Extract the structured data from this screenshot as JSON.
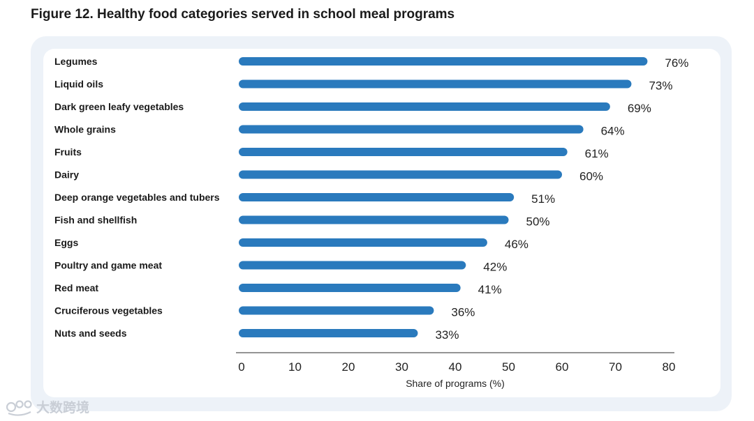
{
  "title": "Figure 12. Healthy food categories served in school meal programs",
  "watermark": "大数跨境",
  "colors": {
    "bar": "#2a7abd",
    "frame": "#edf2f8",
    "axis": "#555555"
  },
  "chart_data": {
    "type": "bar",
    "orientation": "horizontal",
    "categories": [
      "Legumes",
      "Liquid oils",
      "Dark green leafy vegetables",
      "Whole grains",
      "Fruits",
      "Dairy",
      "Deep orange vegetables and tubers",
      "Fish and shellfish",
      "Eggs",
      "Poultry and game meat",
      "Red meat",
      "Cruciferous vegetables",
      "Nuts and seeds"
    ],
    "values": [
      76,
      73,
      69,
      64,
      61,
      60,
      51,
      50,
      46,
      42,
      41,
      36,
      33
    ],
    "value_labels": [
      "76%",
      "73%",
      "69%",
      "64%",
      "61%",
      "60%",
      "51%",
      "50%",
      "46%",
      "42%",
      "41%",
      "36%",
      "33%"
    ],
    "xlabel": "Share of programs (%)",
    "xlim": [
      0,
      80
    ],
    "xticks": [
      "0",
      "10",
      "20",
      "30",
      "40",
      "50",
      "60",
      "70",
      "80"
    ],
    "grid": false,
    "legend": "none"
  }
}
